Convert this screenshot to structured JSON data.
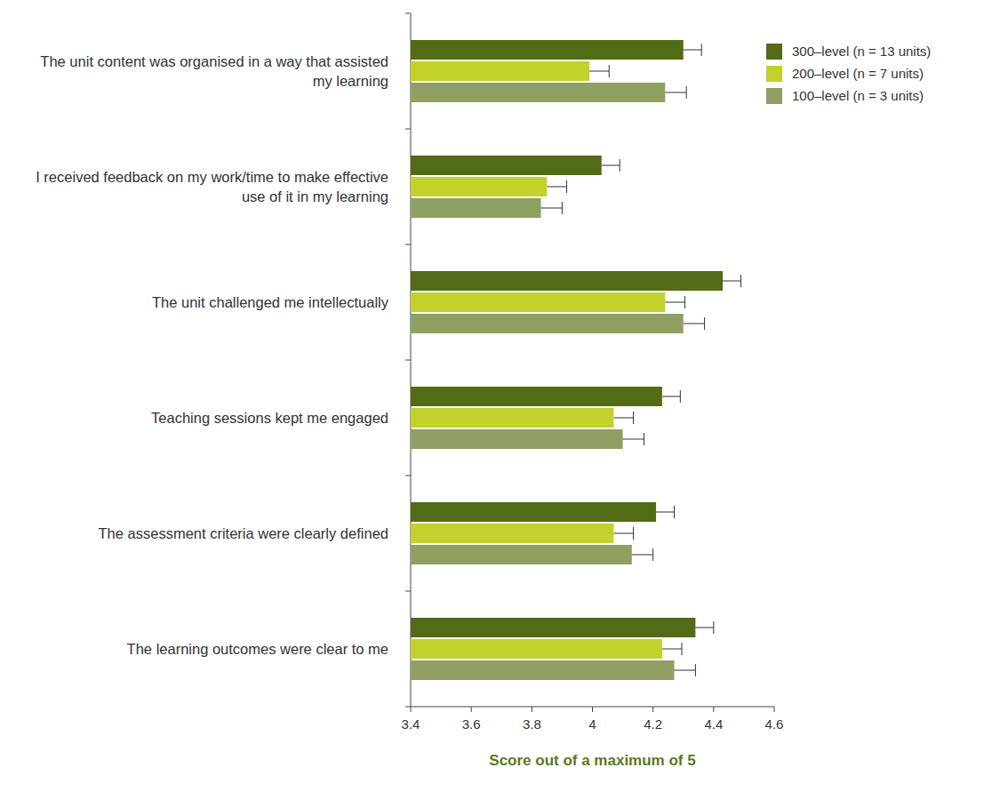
{
  "chart_data": {
    "type": "bar",
    "orientation": "horizontal",
    "x_label": "Score out of a maximum of 5",
    "categories": [
      "The unit content was organised in a way that assisted my learning",
      "I received feedback on my work/time to make effective use of it in my learning",
      "The unit challenged me intellectually",
      "Teaching sessions kept me engaged",
      "The assessment criteria were clearly defined",
      "The learning outcomes were clear to me"
    ],
    "series": [
      {
        "name": "300–level (n = 13 units)",
        "color": "#526b17",
        "values": [
          4.3,
          4.03,
          4.43,
          4.23,
          4.21,
          4.34
        ],
        "errors": [
          0.06,
          0.06,
          0.06,
          0.06,
          0.06,
          0.06
        ]
      },
      {
        "name": "200–level (n = 7 units)",
        "color": "#c2d12b",
        "values": [
          3.99,
          3.85,
          4.24,
          4.07,
          4.07,
          4.23
        ],
        "errors": [
          0.065,
          0.065,
          0.065,
          0.065,
          0.065,
          0.065
        ]
      },
      {
        "name": "100–level (n = 3 units)",
        "color": "#8fa062",
        "values": [
          4.24,
          3.83,
          4.3,
          4.1,
          4.13,
          4.27
        ],
        "errors": [
          0.07,
          0.07,
          0.07,
          0.07,
          0.07,
          0.07
        ]
      }
    ],
    "xlim": [
      3.4,
      4.6
    ],
    "xticks": [
      3.4,
      3.6,
      3.8,
      4,
      4.2,
      4.4,
      4.6
    ],
    "legend": "top-right",
    "grid": false
  }
}
